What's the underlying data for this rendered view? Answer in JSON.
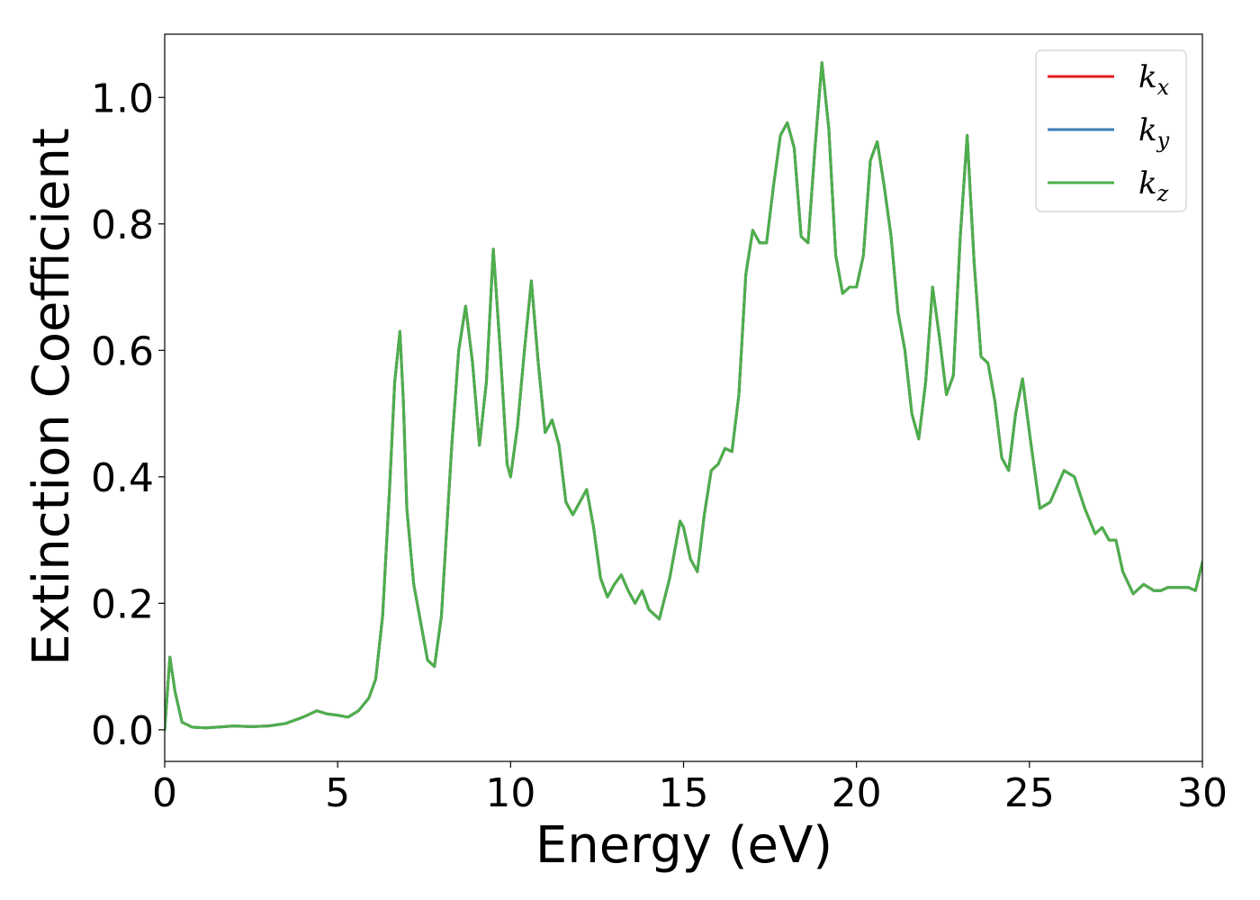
{
  "chart_data": {
    "type": "line",
    "xlabel": "Energy (eV)",
    "ylabel": "Extinction Coefficient",
    "xlim": [
      0,
      30
    ],
    "ylim": [
      -0.05,
      1.1
    ],
    "xticks": [
      0,
      5,
      10,
      15,
      20,
      25,
      30
    ],
    "xtick_labels": [
      "0",
      "5",
      "10",
      "15",
      "20",
      "25",
      "30"
    ],
    "yticks": [
      0.0,
      0.2,
      0.4,
      0.6,
      0.8,
      1.0
    ],
    "ytick_labels": [
      "0.0",
      "0.2",
      "0.4",
      "0.6",
      "0.8",
      "1.0"
    ],
    "grid": false,
    "legend_position": "top-right",
    "series": [
      {
        "name": "k_x",
        "label_main": "k",
        "label_sub": "x",
        "color": "#e41a1c",
        "share": "k_z"
      },
      {
        "name": "k_y",
        "label_main": "k",
        "label_sub": "y",
        "color": "#377eb8",
        "share": "k_z"
      },
      {
        "name": "k_z",
        "label_main": "k",
        "label_sub": "z",
        "color": "#4daf4a",
        "x": [
          0,
          0.15,
          0.3,
          0.5,
          0.8,
          1.2,
          2.0,
          2.5,
          3.0,
          3.5,
          4.0,
          4.4,
          4.7,
          5.0,
          5.3,
          5.6,
          5.9,
          6.1,
          6.3,
          6.5,
          6.65,
          6.8,
          6.9,
          7.0,
          7.2,
          7.4,
          7.6,
          7.8,
          8.0,
          8.3,
          8.5,
          8.7,
          8.9,
          9.1,
          9.3,
          9.5,
          9.7,
          9.9,
          10.0,
          10.2,
          10.4,
          10.6,
          10.8,
          11.0,
          11.2,
          11.4,
          11.6,
          11.8,
          12.0,
          12.2,
          12.4,
          12.6,
          12.8,
          13.0,
          13.2,
          13.4,
          13.6,
          13.8,
          14.0,
          14.3,
          14.6,
          14.9,
          15.0,
          15.2,
          15.4,
          15.6,
          15.8,
          16.0,
          16.2,
          16.4,
          16.6,
          16.8,
          17.0,
          17.2,
          17.4,
          17.6,
          17.8,
          18.0,
          18.2,
          18.4,
          18.6,
          18.8,
          19.0,
          19.2,
          19.4,
          19.6,
          19.8,
          20.0,
          20.2,
          20.4,
          20.6,
          20.8,
          21.0,
          21.2,
          21.4,
          21.6,
          21.8,
          22.0,
          22.2,
          22.4,
          22.6,
          22.8,
          23.0,
          23.2,
          23.4,
          23.6,
          23.8,
          24.0,
          24.2,
          24.4,
          24.6,
          24.8,
          25.0,
          25.3,
          25.6,
          26.0,
          26.3,
          26.6,
          26.9,
          27.1,
          27.3,
          27.5,
          27.7,
          28.0,
          28.3,
          28.6,
          28.8,
          29.0,
          29.3,
          29.6,
          29.8,
          30.0
        ],
        "values": [
          0.0,
          0.115,
          0.06,
          0.012,
          0.004,
          0.003,
          0.006,
          0.005,
          0.006,
          0.01,
          0.02,
          0.03,
          0.025,
          0.023,
          0.02,
          0.03,
          0.05,
          0.08,
          0.18,
          0.38,
          0.55,
          0.63,
          0.52,
          0.35,
          0.23,
          0.17,
          0.11,
          0.1,
          0.18,
          0.45,
          0.6,
          0.67,
          0.58,
          0.45,
          0.55,
          0.76,
          0.6,
          0.42,
          0.4,
          0.48,
          0.6,
          0.71,
          0.58,
          0.47,
          0.49,
          0.45,
          0.36,
          0.34,
          0.36,
          0.38,
          0.32,
          0.24,
          0.21,
          0.23,
          0.245,
          0.22,
          0.2,
          0.22,
          0.19,
          0.175,
          0.24,
          0.33,
          0.32,
          0.27,
          0.25,
          0.34,
          0.41,
          0.42,
          0.445,
          0.44,
          0.53,
          0.72,
          0.79,
          0.77,
          0.77,
          0.86,
          0.94,
          0.96,
          0.92,
          0.78,
          0.77,
          0.92,
          1.055,
          0.95,
          0.75,
          0.69,
          0.7,
          0.7,
          0.75,
          0.9,
          0.93,
          0.86,
          0.78,
          0.66,
          0.6,
          0.5,
          0.46,
          0.55,
          0.7,
          0.62,
          0.53,
          0.56,
          0.78,
          0.94,
          0.74,
          0.59,
          0.58,
          0.52,
          0.43,
          0.41,
          0.5,
          0.555,
          0.47,
          0.35,
          0.36,
          0.41,
          0.4,
          0.35,
          0.31,
          0.32,
          0.3,
          0.3,
          0.25,
          0.215,
          0.23,
          0.22,
          0.22,
          0.225,
          0.225,
          0.225,
          0.22,
          0.265
        ]
      }
    ]
  }
}
